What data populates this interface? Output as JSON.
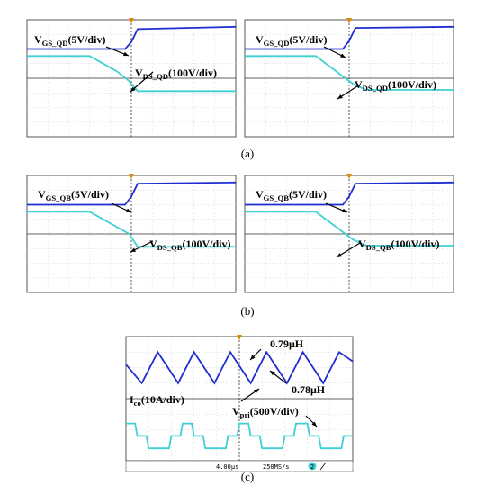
{
  "chart_data": [
    {
      "type": "line",
      "panel": "a",
      "position": "left",
      "labels": [
        {
          "main": "V",
          "sub": "GS_QD",
          "tail": "(5V/div)"
        },
        {
          "main": "V",
          "sub": "DS_QD",
          "tail": "(100V/div)"
        }
      ],
      "series": [
        {
          "color": "#1f2fcf",
          "x": [
            0,
            0.47,
            0.5,
            0.53,
            1
          ],
          "y": [
            0.5,
            0.5,
            0.62,
            0.84,
            0.88
          ]
        },
        {
          "color": "#3fd0d4",
          "x": [
            0,
            0.3,
            0.43,
            0.49,
            0.53,
            1
          ],
          "y": [
            0.38,
            0.38,
            0.12,
            -0.05,
            -0.22,
            -0.22
          ]
        }
      ]
    },
    {
      "type": "line",
      "panel": "a",
      "position": "right",
      "labels": [
        {
          "main": "V",
          "sub": "GS_QD",
          "tail": "(5V/div)"
        },
        {
          "main": "V",
          "sub": "DS_QD",
          "tail": "(100V/div)"
        }
      ],
      "series": [
        {
          "color": "#1f2fcf",
          "x": [
            0,
            0.47,
            0.5,
            0.53,
            1
          ],
          "y": [
            0.5,
            0.5,
            0.64,
            0.86,
            0.88
          ]
        },
        {
          "color": "#3fd0d4",
          "x": [
            0,
            0.34,
            0.52,
            0.58,
            1
          ],
          "y": [
            0.38,
            0.38,
            -0.1,
            -0.2,
            -0.2
          ]
        }
      ]
    },
    {
      "type": "line",
      "panel": "b",
      "position": "left",
      "labels": [
        {
          "main": "V",
          "sub": "GS_QB",
          "tail": "(5V/div)"
        },
        {
          "main": "V",
          "sub": "DS_QB",
          "tail": "(100V/div)"
        }
      ],
      "series": [
        {
          "color": "#1f2fcf",
          "x": [
            0,
            0.47,
            0.5,
            0.53,
            1
          ],
          "y": [
            0.5,
            0.5,
            0.64,
            0.86,
            0.88
          ]
        },
        {
          "color": "#3fd0d4",
          "x": [
            0,
            0.3,
            0.42,
            0.49,
            0.53,
            1
          ],
          "y": [
            0.38,
            0.38,
            0.14,
            0.0,
            -0.22,
            -0.22
          ]
        }
      ]
    },
    {
      "type": "line",
      "panel": "b",
      "position": "right",
      "labels": [
        {
          "main": "V",
          "sub": "GS_QB",
          "tail": "(5V/div)"
        },
        {
          "main": "V",
          "sub": "DS_QB",
          "tail": "(100V/div)"
        }
      ],
      "series": [
        {
          "color": "#1f2fcf",
          "x": [
            0,
            0.47,
            0.5,
            0.53,
            1
          ],
          "y": [
            0.5,
            0.5,
            0.64,
            0.86,
            0.88
          ]
        },
        {
          "color": "#3fd0d4",
          "x": [
            0,
            0.34,
            0.52,
            0.58,
            1
          ],
          "y": [
            0.38,
            0.38,
            -0.1,
            -0.2,
            -0.2
          ]
        }
      ]
    },
    {
      "type": "line",
      "panel": "c",
      "labels": [
        {
          "main": "0.79μH"
        },
        {
          "main": "0.78μH"
        },
        {
          "main": "I",
          "sub": "co",
          "tail": "(10A/div)"
        },
        {
          "main": "V",
          "sub": "pri",
          "tail": "(500V/div)"
        }
      ],
      "status": {
        "timebase": "4.00μs",
        "rate": "250MS/s",
        "channel": "2"
      },
      "series": [
        {
          "color": "#1f2fcf",
          "x": [
            0,
            0.07,
            0.14,
            0.23,
            0.3,
            0.39,
            0.46,
            0.55,
            0.62,
            0.71,
            0.78,
            0.87,
            0.94,
            1
          ],
          "y": [
            0.55,
            0.25,
            0.75,
            0.25,
            0.75,
            0.25,
            0.75,
            0.25,
            0.75,
            0.25,
            0.75,
            0.25,
            0.75,
            0.6
          ]
        },
        {
          "color": "#3fd0d4",
          "x": [
            0,
            0.04,
            0.05,
            0.09,
            0.1,
            0.19,
            0.2,
            0.24,
            0.25,
            0.29,
            0.3,
            0.34,
            0.35,
            0.44,
            0.45,
            0.49,
            0.5,
            0.54,
            0.55,
            0.59,
            0.6,
            0.69,
            0.7,
            0.74,
            0.75,
            0.8,
            0.81,
            0.85,
            0.86,
            0.95,
            0.96,
            1
          ],
          "y": [
            -0.4,
            -0.4,
            -0.6,
            -0.6,
            -0.8,
            -0.8,
            -0.6,
            -0.6,
            -0.4,
            -0.4,
            -0.6,
            -0.6,
            -0.8,
            -0.8,
            -0.6,
            -0.6,
            -0.4,
            -0.4,
            -0.6,
            -0.6,
            -0.8,
            -0.8,
            -0.6,
            -0.6,
            -0.4,
            -0.4,
            -0.6,
            -0.6,
            -0.8,
            -0.8,
            -0.6,
            -0.6
          ]
        }
      ]
    }
  ],
  "captions": [
    "(a)",
    "(b)",
    "(c)"
  ]
}
